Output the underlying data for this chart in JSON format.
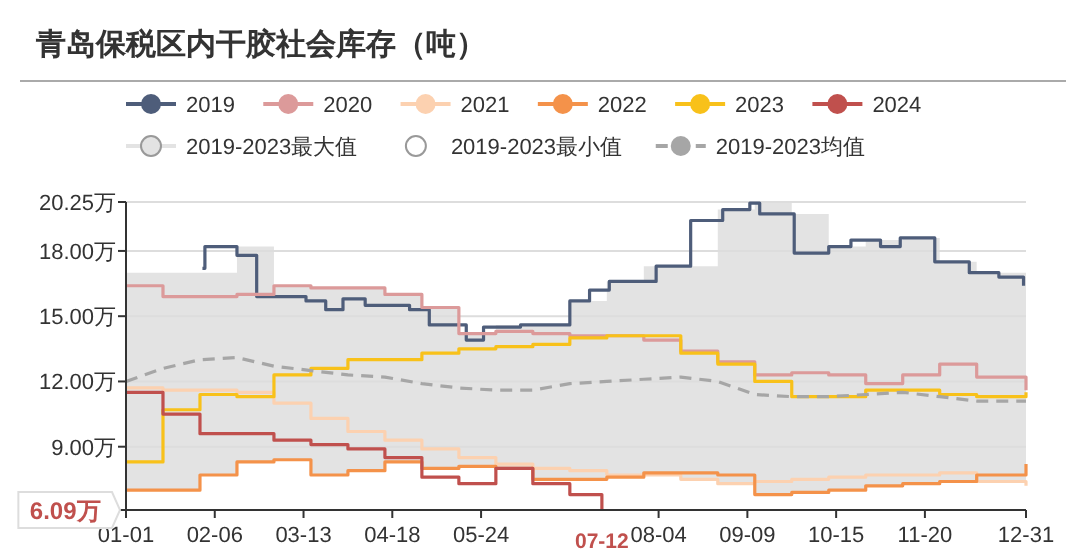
{
  "chart_data": {
    "type": "step",
    "title": "青岛保税区内干胶社会库存（吨）",
    "xlim": [
      "--01-01",
      "--12-31"
    ],
    "xticks": [
      {
        "value": "--01-01",
        "label": "01-01"
      },
      {
        "value": "--02-06",
        "label": "02-06"
      },
      {
        "value": "--03-13",
        "label": "03-13"
      },
      {
        "value": "--04-18",
        "label": "04-18"
      },
      {
        "value": "--05-24",
        "label": "05-24"
      },
      {
        "value": "--08-04",
        "label": "08-04"
      },
      {
        "value": "--09-09",
        "label": "09-09"
      },
      {
        "value": "--10-15",
        "label": "10-15"
      },
      {
        "value": "--11-20",
        "label": "11-20"
      },
      {
        "value": "--12-31",
        "label": "12-31"
      }
    ],
    "ylim": [
      6.09,
      20.25
    ],
    "yticks": [
      {
        "value": 6.09,
        "label": null
      },
      {
        "value": 9,
        "label": "9.00万"
      },
      {
        "value": 12,
        "label": "12.00万"
      },
      {
        "value": 15,
        "label": "15.00万"
      },
      {
        "value": 18,
        "label": "18.00万"
      },
      {
        "value": 20.25,
        "label": "20.25万"
      }
    ],
    "grid": "y",
    "legend": "top",
    "x": [
      "--01-01",
      "--01-16",
      "--01-31",
      "--02-15",
      "--03-01",
      "--03-16",
      "--03-31",
      "--04-15",
      "--04-30",
      "--05-15",
      "--05-30",
      "--06-14",
      "--06-29",
      "--07-14",
      "--07-29",
      "--08-13",
      "--08-28",
      "--09-12",
      "--09-27",
      "--10-12",
      "--10-27",
      "--11-11",
      "--11-26",
      "--12-11",
      "--12-31"
    ],
    "series": [
      {
        "name": "2019",
        "color": "#4e5d7a",
        "x": [
          "--02-01",
          "--02-02",
          "--02-15",
          "--02-23",
          "--03-14",
          "--03-22",
          "--03-29",
          "--04-07",
          "--04-25",
          "--05-03",
          "--05-18",
          "--05-25",
          "--06-09",
          "--06-29",
          "--07-07",
          "--07-15",
          "--08-03",
          "--08-17",
          "--08-30",
          "--09-10",
          "--09-14",
          "--09-28",
          "--10-12",
          "--10-21",
          "--11-02",
          "--11-10",
          "--11-24",
          "--12-08",
          "--12-20",
          "--12-30"
        ],
        "values": [
          17.2,
          18.2,
          17.8,
          15.9,
          15.7,
          15.3,
          15.8,
          15.5,
          15.3,
          14.6,
          13.9,
          14.5,
          14.6,
          15.7,
          16.2,
          16.6,
          17.3,
          19.4,
          19.9,
          20.2,
          19.7,
          17.9,
          18.2,
          18.5,
          18.2,
          18.6,
          17.5,
          17.0,
          16.8,
          16.4
        ]
      },
      {
        "name": "2020",
        "color": "#dc9a9a",
        "values": [
          16.4,
          15.9,
          15.9,
          16.0,
          16.4,
          16.3,
          16.3,
          16.0,
          15.4,
          14.2,
          14.3,
          14.2,
          14.1,
          14.1,
          13.9,
          13.4,
          12.9,
          12.3,
          12.4,
          12.3,
          11.9,
          12.3,
          12.8,
          12.2,
          11.6
        ]
      },
      {
        "name": "2021",
        "color": "#fcd1b0",
        "values": [
          11.7,
          11.6,
          11.6,
          11.5,
          11.0,
          10.3,
          9.7,
          9.3,
          8.9,
          8.5,
          8.2,
          8.0,
          7.9,
          7.7,
          7.7,
          7.5,
          7.3,
          7.4,
          7.5,
          7.6,
          7.7,
          7.7,
          7.8,
          7.4,
          7.2
        ]
      },
      {
        "name": "2022",
        "color": "#f4924a",
        "values": [
          7.0,
          7.0,
          7.7,
          8.3,
          8.4,
          7.7,
          7.9,
          8.3,
          8.0,
          8.1,
          8.0,
          7.5,
          7.5,
          7.6,
          7.8,
          7.8,
          7.7,
          6.8,
          6.9,
          7.0,
          7.2,
          7.3,
          7.4,
          7.7,
          8.2
        ]
      },
      {
        "name": "2023",
        "color": "#f8c11a",
        "values": [
          8.3,
          10.7,
          11.4,
          11.3,
          12.3,
          12.6,
          13.0,
          13.0,
          13.3,
          13.5,
          13.6,
          13.7,
          14.0,
          14.1,
          14.1,
          13.3,
          12.8,
          12.0,
          11.3,
          11.3,
          11.6,
          11.6,
          11.4,
          11.3,
          11.5
        ]
      },
      {
        "name": "2024",
        "color": "#c0504d",
        "x": [
          "--01-01",
          "--01-16",
          "--01-31",
          "--02-15",
          "--03-01",
          "--03-16",
          "--03-31",
          "--04-15",
          "--04-30",
          "--05-15",
          "--05-30",
          "--06-14",
          "--06-29",
          "--07-12"
        ],
        "values": [
          11.5,
          10.5,
          9.6,
          9.6,
          9.3,
          9.1,
          8.9,
          8.5,
          7.6,
          7.3,
          8.0,
          7.3,
          6.8,
          6.09
        ]
      },
      {
        "name": "2019-2023最大值",
        "type": "area",
        "color": "#e3e3e3",
        "values": [
          17.0,
          17.0,
          17.0,
          18.2,
          16.4,
          16.3,
          16.3,
          16.0,
          15.4,
          14.2,
          14.6,
          14.6,
          15.7,
          16.6,
          17.3,
          17.3,
          19.9,
          20.2,
          19.7,
          18.2,
          18.5,
          18.6,
          17.5,
          17.0,
          16.4
        ]
      },
      {
        "name": "2019-2023最小值",
        "type": "area",
        "color": "#ffffff",
        "values": [
          7.0,
          7.0,
          7.7,
          8.3,
          8.4,
          7.7,
          7.9,
          8.3,
          8.0,
          8.1,
          8.0,
          7.5,
          7.5,
          7.6,
          7.7,
          7.5,
          7.3,
          6.8,
          6.9,
          7.0,
          7.2,
          7.3,
          7.4,
          7.4,
          7.2
        ]
      },
      {
        "name": "2019-2023均值",
        "type": "line",
        "line_style": "dashed",
        "color": "#a6a6a6",
        "values": [
          12.0,
          12.6,
          13.0,
          13.1,
          12.7,
          12.5,
          12.3,
          12.2,
          11.9,
          11.7,
          11.6,
          11.6,
          11.9,
          12.0,
          12.1,
          12.2,
          12.0,
          11.4,
          11.3,
          11.3,
          11.4,
          11.5,
          11.3,
          11.1,
          11.1
        ]
      }
    ],
    "annotations": [
      "6.09万",
      "07-12"
    ]
  }
}
